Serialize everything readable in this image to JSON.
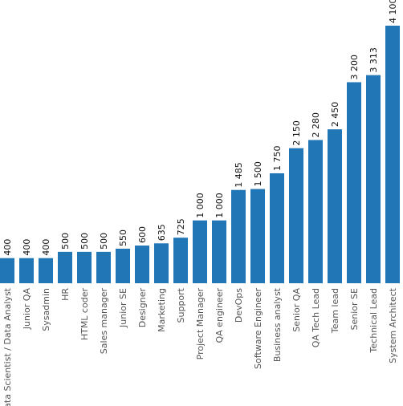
{
  "chart_data": {
    "type": "bar",
    "categories": [
      "Data Scientist / Data Analyst",
      "Junior QA",
      "Sysadmin",
      "HR",
      "HTML coder",
      "Sales manager",
      "Junior SE",
      "Designer",
      "Marketing",
      "Support",
      "Project Manager",
      "QA engineer",
      "DevOps",
      "Software Engineer",
      "Business analyst",
      "Senior QA",
      "QA Tech Lead",
      "Team lead",
      "Senior SE",
      "Technical Lead",
      "System Architect"
    ],
    "values": [
      400,
      400,
      400,
      500,
      500,
      500,
      550,
      600,
      635,
      725,
      1000,
      1000,
      1485,
      1500,
      1750,
      2150,
      2280,
      2450,
      3200,
      3313,
      4100
    ],
    "value_labels": [
      "400",
      "400",
      "400",
      "500",
      "500",
      "500",
      "550",
      "600",
      "635",
      "725",
      "1 000",
      "1 000",
      "1 485",
      "1 500",
      "1 750",
      "2 150",
      "2 280",
      "2 450",
      "3 200",
      "3 313",
      "4 100"
    ],
    "title": "",
    "xlabel": "",
    "ylabel": "",
    "ylim": [
      0,
      4100
    ],
    "grid": false,
    "color": "#2176b6"
  }
}
